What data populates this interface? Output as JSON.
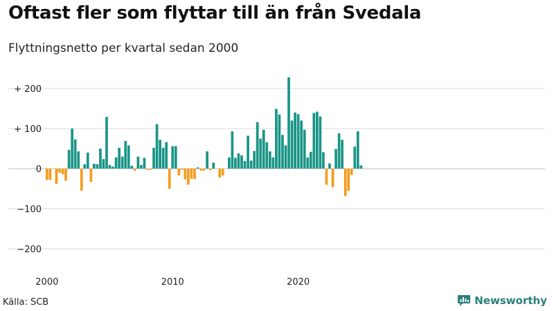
{
  "title": "Oftast fler som flyttar till än från Svedala",
  "subtitle": "Flyttningsnetto per kvartal sedan 2000",
  "source": "Källa: SCB",
  "brand": {
    "name": "Newsworthy",
    "icon": "newsworthy-bar-chart-logo"
  },
  "colors": {
    "positive": "#1a9587",
    "negative": "#f39c1e",
    "grid": "#d9d9d9",
    "text": "#222222"
  },
  "chart_data": {
    "type": "bar",
    "x_start": "2000 Q1",
    "x_ticks": [
      "2000",
      "2010",
      "2020"
    ],
    "y_ticks": [
      200,
      100,
      0,
      -100,
      -200
    ],
    "y_tick_labels": [
      "+ 200",
      "+ 100",
      "0",
      "−100",
      "−200"
    ],
    "ylim": [
      -225,
      245
    ],
    "grid": "horizontal",
    "values": [
      -28,
      -28,
      0,
      -38,
      -10,
      -14,
      -30,
      47,
      100,
      73,
      43,
      -55,
      11,
      40,
      -33,
      12,
      11,
      50,
      24,
      129,
      9,
      5,
      28,
      52,
      30,
      69,
      58,
      7,
      -5,
      30,
      9,
      27,
      -3,
      -3,
      52,
      111,
      72,
      52,
      66,
      -50,
      56,
      56,
      -17,
      -3,
      -27,
      -40,
      -25,
      -26,
      3,
      -5,
      -5,
      43,
      -4,
      15,
      0,
      -22,
      -17,
      0,
      28,
      93,
      27,
      38,
      33,
      19,
      82,
      20,
      44,
      116,
      75,
      97,
      66,
      43,
      28,
      149,
      135,
      84,
      58,
      228,
      120,
      140,
      136,
      120,
      97,
      28,
      42,
      139,
      142,
      130,
      41,
      -40,
      13,
      -46,
      49,
      88,
      72,
      -68,
      -55,
      -16,
      55,
      93,
      8
    ]
  }
}
